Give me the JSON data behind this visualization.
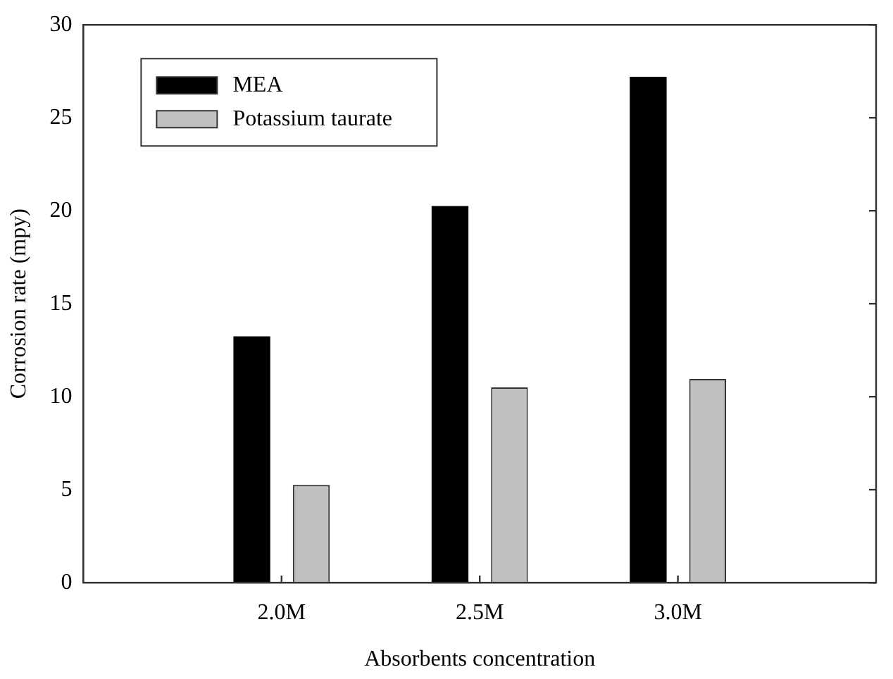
{
  "chart_data": {
    "type": "bar",
    "xlabel": "Absorbents concentration",
    "ylabel": "Corrosion rate (mpy)",
    "categories": [
      "2.0M",
      "2.5M",
      "3.0M"
    ],
    "series": [
      {
        "name": "MEA",
        "color": "#000000",
        "values": [
          13.25,
          20.25,
          27.2
        ]
      },
      {
        "name": "Potassium taurate",
        "color": "#c0c0c0",
        "values": [
          5.25,
          10.5,
          10.95
        ]
      }
    ],
    "ylim": [
      0,
      30
    ],
    "yticks": [
      0,
      5,
      10,
      15,
      20,
      25,
      30
    ],
    "grid": false,
    "legend": "top left"
  }
}
